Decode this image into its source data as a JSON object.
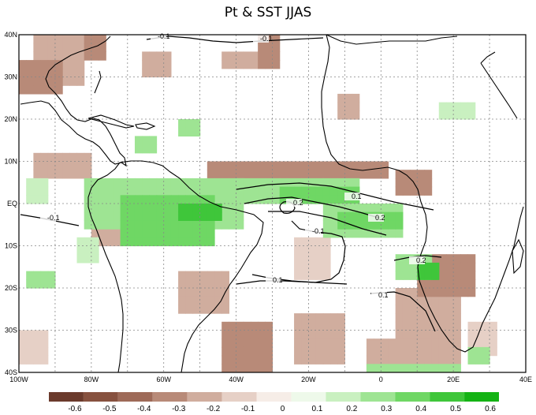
{
  "title": "Pt & SST JJAS",
  "lat_labels": [
    "40N",
    "30N",
    "20N",
    "10N",
    "EQ",
    "10S",
    "20S",
    "30S",
    "40S"
  ],
  "lon_labels": [
    "100W",
    "80W",
    "60W",
    "40W",
    "20W",
    "0",
    "20E",
    "40E"
  ],
  "colorbar": {
    "tick_labels": [
      "-0.6",
      "-0.5",
      "-0.4",
      "-0.3",
      "-0.2",
      "-0.1",
      "0",
      "0.1",
      "0.2",
      "0.3",
      "0.4",
      "0.5",
      "0.6"
    ],
    "colors": [
      "#6b3a2c",
      "#87513f",
      "#9e6a58",
      "#b88a78",
      "#d0ad9e",
      "#e6d0c6",
      "#f6ede7",
      "#eef9ea",
      "#c9f0c0",
      "#9ee493",
      "#6fd764",
      "#3fc63a",
      "#14b314"
    ]
  },
  "contour_labels": [
    "-0.1",
    "-0.1",
    "-0.1",
    "0.2",
    "0.1",
    "0.2",
    "-0.1",
    "0.2",
    "0.1",
    "0.1"
  ]
}
